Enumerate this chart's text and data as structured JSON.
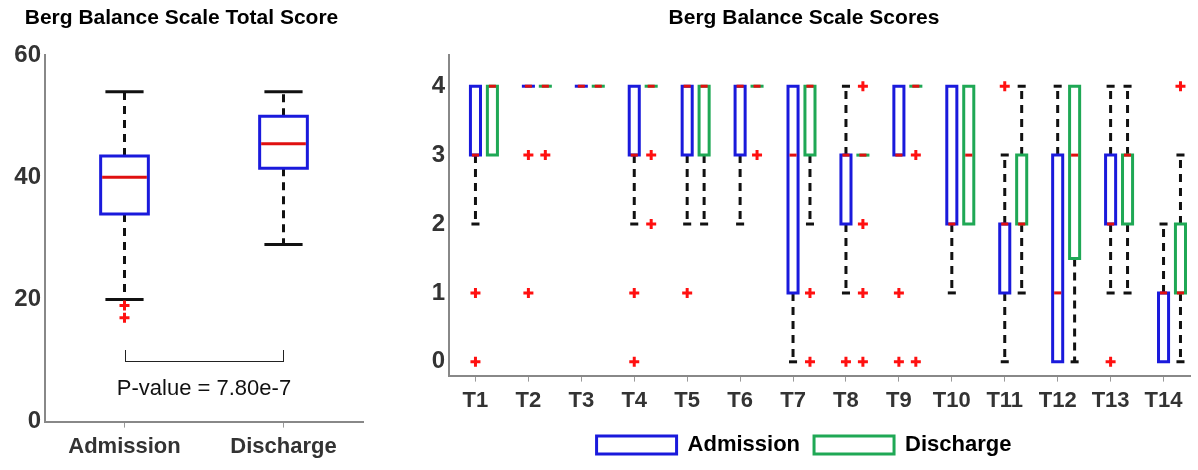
{
  "chart_data": [
    {
      "type": "box",
      "title": "Berg Balance Scale Total Score",
      "categories": [
        "Admission",
        "Discharge"
      ],
      "series": [
        {
          "color": "#1a1adc",
          "boxes": [
            {
              "low": 20,
              "q1": 34,
              "median": 40,
              "q3": 43.5,
              "high": 54,
              "outliers": [
                19,
                17
              ]
            },
            {
              "low": 29,
              "q1": 41.5,
              "median": 45.5,
              "q3": 50,
              "high": 54
            }
          ]
        }
      ],
      "ylim": [
        0,
        60
      ],
      "yticks": [
        0,
        20,
        40,
        60
      ],
      "grid": false,
      "legend": false,
      "annotations": [
        "P-value = 7.80e-7"
      ]
    },
    {
      "type": "box",
      "title": "Berg Balance Scale Scores",
      "categories": [
        "T1",
        "T2",
        "T3",
        "T4",
        "T5",
        "T6",
        "T7",
        "T8",
        "T9",
        "T10",
        "T11",
        "T12",
        "T13",
        "T14"
      ],
      "series": [
        {
          "name": "Admission",
          "color": "#1a1adc",
          "boxes": [
            {
              "low": 2,
              "q1": 3,
              "median": 3,
              "q3": 4,
              "high": 4,
              "outliers": [
                1,
                0
              ]
            },
            {
              "low": 4,
              "q1": 4,
              "median": 4,
              "q3": 4,
              "high": 4,
              "outliers": [
                3,
                1
              ]
            },
            {
              "low": 4,
              "q1": 4,
              "median": 4,
              "q3": 4,
              "high": 4
            },
            {
              "low": 2,
              "q1": 3,
              "median": 3,
              "q3": 4,
              "high": 4,
              "outliers": [
                1,
                0
              ]
            },
            {
              "low": 2,
              "q1": 3,
              "median": 4,
              "q3": 4,
              "high": 4,
              "outliers": [
                1
              ]
            },
            {
              "low": 2,
              "q1": 3,
              "median": 4,
              "q3": 4,
              "high": 4
            },
            {
              "low": 0,
              "q1": 1,
              "median": 3,
              "q3": 4,
              "high": 4
            },
            {
              "low": 1,
              "q1": 2,
              "median": 3,
              "q3": 3,
              "high": 4,
              "outliers": [
                0
              ]
            },
            {
              "low": 3,
              "q1": 3,
              "median": 3,
              "q3": 4,
              "high": 4,
              "outliers": [
                1,
                0
              ]
            },
            {
              "low": 1,
              "q1": 2,
              "median": 2,
              "q3": 4,
              "high": 4
            },
            {
              "low": 0,
              "q1": 1,
              "median": 2,
              "q3": 2,
              "high": 3,
              "outliers": [
                4
              ]
            },
            {
              "low": 0,
              "q1": 0,
              "median": 1,
              "q3": 3,
              "high": 4
            },
            {
              "low": 1,
              "q1": 2,
              "median": 2,
              "q3": 3,
              "high": 4,
              "outliers": [
                0
              ]
            },
            {
              "low": 0,
              "q1": 0,
              "median": 1,
              "q3": 1,
              "high": 2
            }
          ]
        },
        {
          "name": "Discharge",
          "color": "#1fa855",
          "boxes": [
            {
              "low": 3,
              "q1": 3,
              "median": 4,
              "q3": 4,
              "high": 4
            },
            {
              "low": 4,
              "q1": 4,
              "median": 4,
              "q3": 4,
              "high": 4,
              "outliers": [
                3
              ]
            },
            {
              "low": 4,
              "q1": 4,
              "median": 4,
              "q3": 4,
              "high": 4
            },
            {
              "low": 4,
              "q1": 4,
              "median": 4,
              "q3": 4,
              "high": 4,
              "outliers": [
                3,
                2
              ]
            },
            {
              "low": 2,
              "q1": 3,
              "median": 4,
              "q3": 4,
              "high": 4
            },
            {
              "low": 4,
              "q1": 4,
              "median": 4,
              "q3": 4,
              "high": 4,
              "outliers": [
                3
              ]
            },
            {
              "low": 2,
              "q1": 3,
              "median": 4,
              "q3": 4,
              "high": 4,
              "outliers": [
                1,
                0
              ]
            },
            {
              "low": 3,
              "q1": 3,
              "median": 3,
              "q3": 3,
              "high": 3,
              "outliers": [
                4,
                2,
                1,
                0
              ]
            },
            {
              "low": 4,
              "q1": 4,
              "median": 4,
              "q3": 4,
              "high": 4,
              "outliers": [
                3,
                0
              ]
            },
            {
              "low": 2,
              "q1": 2,
              "median": 3,
              "q3": 4,
              "high": 4
            },
            {
              "low": 1,
              "q1": 2,
              "median": 2,
              "q3": 3,
              "high": 4
            },
            {
              "low": 0,
              "q1": 1.5,
              "median": 3,
              "q3": 4,
              "high": 4
            },
            {
              "low": 1,
              "q1": 2,
              "median": 3,
              "q3": 3,
              "high": 4
            },
            {
              "low": 0,
              "q1": 1,
              "median": 1,
              "q3": 2,
              "high": 3,
              "outliers": [
                4
              ]
            }
          ]
        }
      ],
      "ylim": [
        -0.2,
        4.45
      ],
      "yticks": [
        0,
        1,
        2,
        3,
        4
      ],
      "grid": false,
      "legend": "bottom"
    }
  ]
}
